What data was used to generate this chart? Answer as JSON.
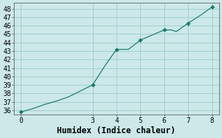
{
  "x": [
    0,
    0.5,
    1.0,
    1.5,
    2.0,
    2.5,
    3.0,
    3.5,
    4.0,
    4.3,
    4.5,
    5.0,
    5.5,
    6.0,
    6.3,
    6.5,
    7.0,
    7.5,
    8.0
  ],
  "y": [
    35.8,
    36.2,
    36.7,
    37.1,
    37.6,
    38.3,
    39.0,
    41.2,
    43.2,
    43.2,
    43.2,
    44.3,
    44.9,
    45.5,
    45.5,
    45.3,
    46.3,
    47.2,
    48.2
  ],
  "marked_x": [
    0,
    3,
    4,
    5,
    6,
    7,
    8
  ],
  "marked_y": [
    35.8,
    39.0,
    43.2,
    44.3,
    45.5,
    46.3,
    48.2
  ],
  "line_color": "#1a7a6e",
  "marker_color": "#1a7a6e",
  "bg_color": "#cce8e8",
  "grid_color": "#9ecece",
  "xlabel": "Humidex (Indice chaleur)",
  "xlim": [
    -0.3,
    8.3
  ],
  "ylim": [
    35.5,
    48.7
  ],
  "xticks": [
    0,
    3,
    4,
    5,
    6,
    7,
    8
  ],
  "yticks": [
    36,
    37,
    38,
    39,
    40,
    41,
    42,
    43,
    44,
    45,
    46,
    47,
    48
  ],
  "xlabel_fontsize": 8.5,
  "tick_fontsize": 7,
  "font_family": "monospace"
}
